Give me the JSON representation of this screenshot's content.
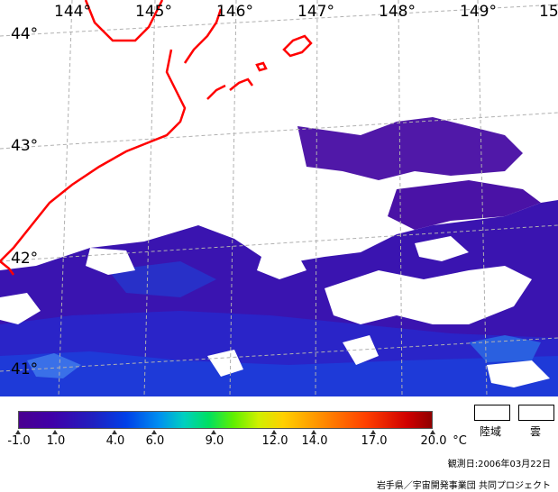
{
  "map": {
    "longitude_labels": [
      "144°",
      "145°",
      "146°",
      "147°",
      "148°",
      "149°",
      "15"
    ],
    "latitude_labels": [
      "44°",
      "43°",
      "42°",
      "41°"
    ],
    "colors": {
      "coast": "#ff0000",
      "grid": "#b0b0b0",
      "water_dark": "#4a0a9c",
      "water_mid": "#2a16b8",
      "cloud": "#ffffff"
    }
  },
  "legend": {
    "ticks": [
      "-1.0",
      "1.0",
      "4.0",
      "6.0",
      "9.0",
      "12.0",
      "14.0",
      "17.0",
      "20.0"
    ],
    "unit": "°C",
    "land_label": "陸域",
    "cloud_label": "雲"
  },
  "footer": {
    "observation_date": "観測日:2006年03月22日",
    "credit": "岩手県／宇宙開発事業団 共同プロジェクト"
  }
}
